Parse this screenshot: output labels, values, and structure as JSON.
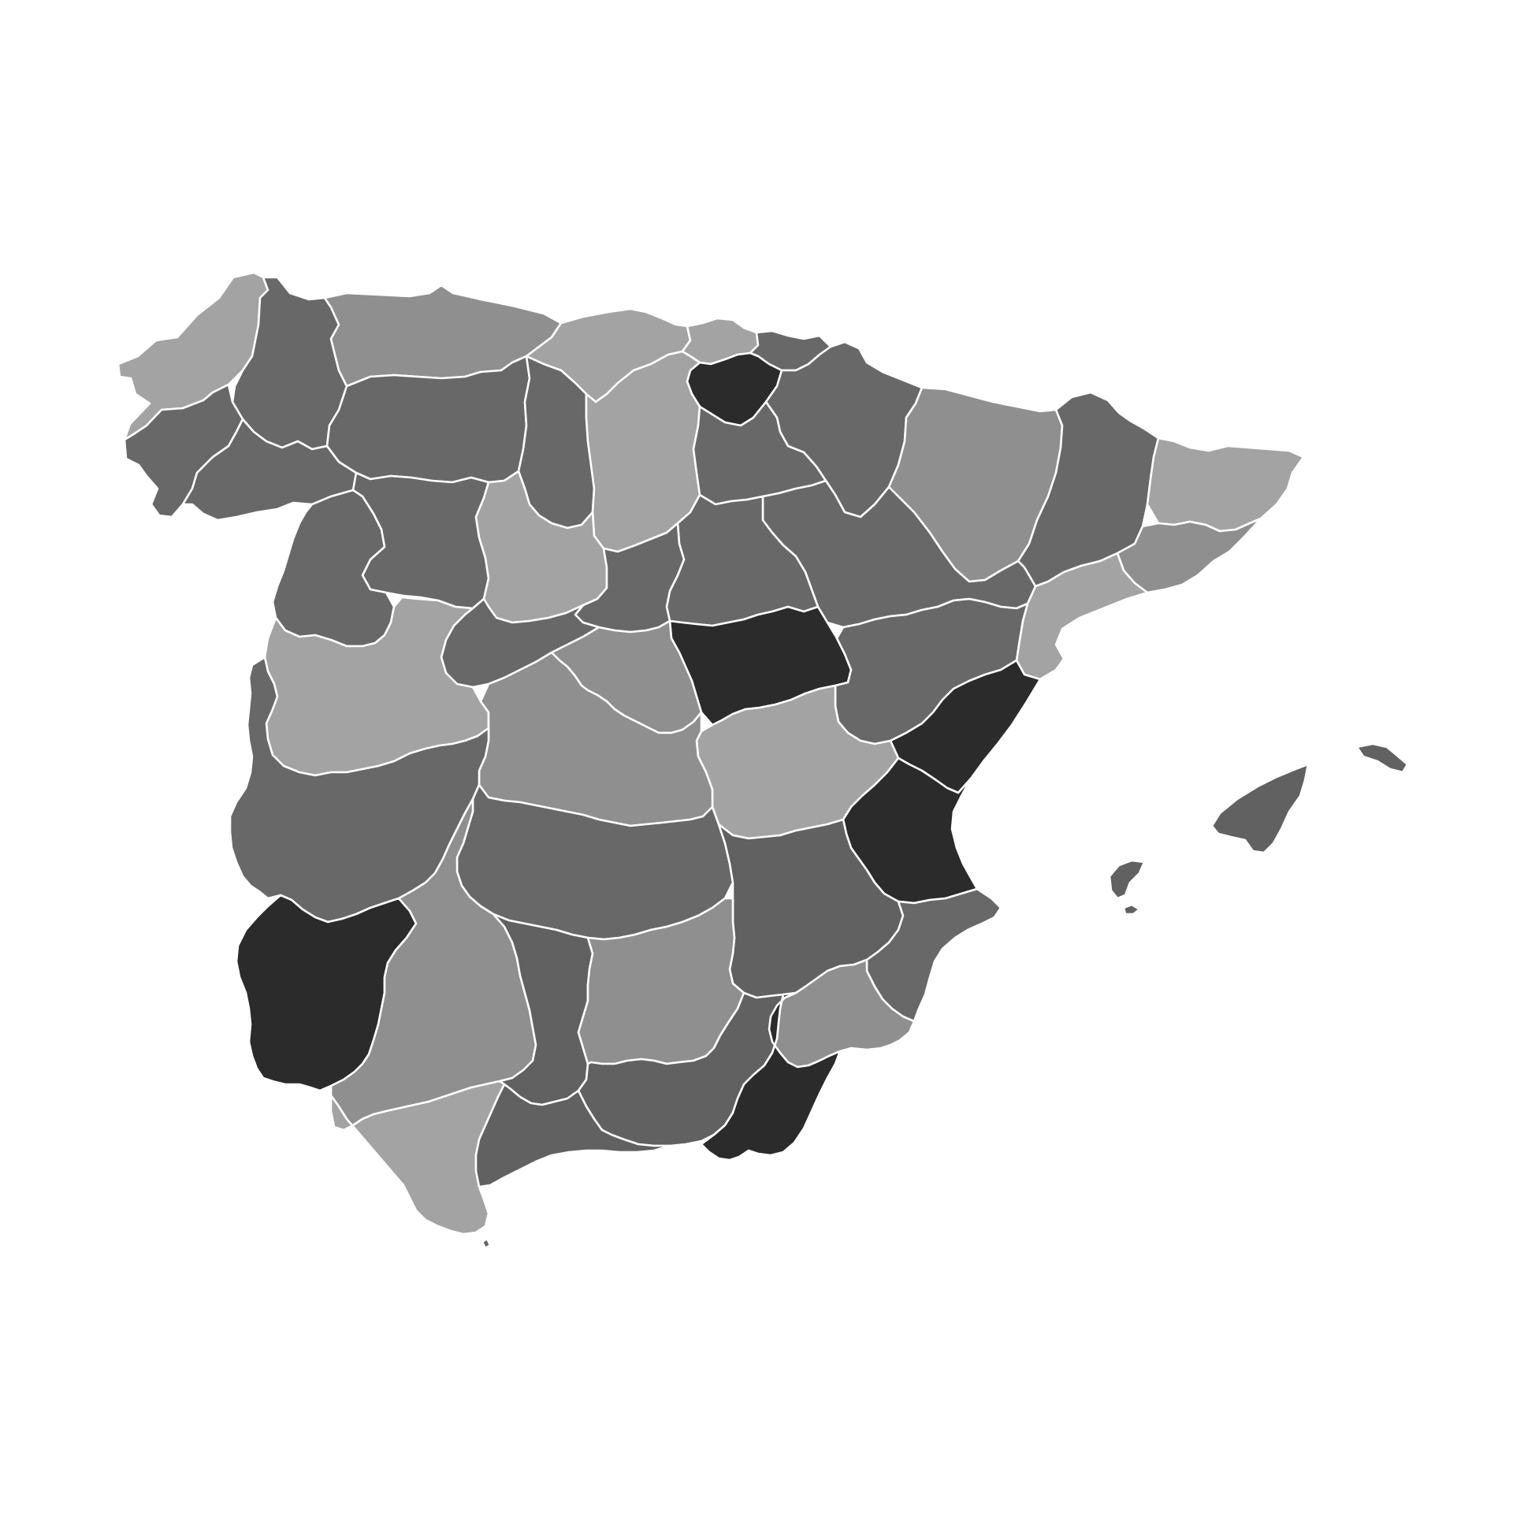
{
  "map": {
    "palette": {
      "background": "#ffffff",
      "border": "#ffffff",
      "darkest": "#2b2b2b",
      "dark": "#616161",
      "medium_dark": "#686868",
      "medium": "#8f8f8f",
      "light": "#a3a3a3"
    },
    "regions": [
      {
        "id": "a-coruna",
        "shade": "light"
      },
      {
        "id": "lugo",
        "shade": "medium_dark"
      },
      {
        "id": "pontevedra",
        "shade": "medium_dark"
      },
      {
        "id": "ourense",
        "shade": "medium_dark"
      },
      {
        "id": "asturias",
        "shade": "medium"
      },
      {
        "id": "cantabria",
        "shade": "light"
      },
      {
        "id": "bizkaia",
        "shade": "light"
      },
      {
        "id": "gipuzkoa",
        "shade": "medium_dark"
      },
      {
        "id": "alava",
        "shade": "darkest"
      },
      {
        "id": "navarra",
        "shade": "medium_dark"
      },
      {
        "id": "huesca",
        "shade": "medium"
      },
      {
        "id": "lleida",
        "shade": "medium_dark"
      },
      {
        "id": "girona",
        "shade": "light"
      },
      {
        "id": "barcelona",
        "shade": "medium"
      },
      {
        "id": "tarragona",
        "shade": "light"
      },
      {
        "id": "leon",
        "shade": "medium_dark"
      },
      {
        "id": "palencia",
        "shade": "medium_dark"
      },
      {
        "id": "burgos",
        "shade": "light"
      },
      {
        "id": "la-rioja",
        "shade": "medium_dark"
      },
      {
        "id": "zaragoza",
        "shade": "medium_dark"
      },
      {
        "id": "zamora",
        "shade": "medium_dark"
      },
      {
        "id": "valladolid",
        "shade": "light"
      },
      {
        "id": "soria",
        "shade": "medium_dark"
      },
      {
        "id": "segovia",
        "shade": "medium_dark"
      },
      {
        "id": "guadalajara",
        "shade": "darkest"
      },
      {
        "id": "teruel",
        "shade": "medium_dark"
      },
      {
        "id": "castellon",
        "shade": "darkest"
      },
      {
        "id": "salamanca",
        "shade": "medium_dark"
      },
      {
        "id": "avila",
        "shade": "medium_dark"
      },
      {
        "id": "madrid",
        "shade": "medium"
      },
      {
        "id": "cuenca",
        "shade": "light"
      },
      {
        "id": "valencia",
        "shade": "darkest"
      },
      {
        "id": "caceres",
        "shade": "light"
      },
      {
        "id": "toledo",
        "shade": "medium"
      },
      {
        "id": "badajoz",
        "shade": "medium_dark"
      },
      {
        "id": "ciudad-real",
        "shade": "medium_dark"
      },
      {
        "id": "albacete",
        "shade": "dark"
      },
      {
        "id": "alicante",
        "shade": "medium_dark"
      },
      {
        "id": "murcia",
        "shade": "medium"
      },
      {
        "id": "huelva",
        "shade": "darkest"
      },
      {
        "id": "sevilla",
        "shade": "medium"
      },
      {
        "id": "cordoba",
        "shade": "dark"
      },
      {
        "id": "jaen",
        "shade": "medium"
      },
      {
        "id": "granada",
        "shade": "dark"
      },
      {
        "id": "almeria",
        "shade": "darkest"
      },
      {
        "id": "cadiz",
        "shade": "light"
      },
      {
        "id": "malaga",
        "shade": "dark"
      },
      {
        "id": "mallorca",
        "shade": "dark"
      },
      {
        "id": "menorca",
        "shade": "dark"
      },
      {
        "id": "ibiza",
        "shade": "dark"
      },
      {
        "id": "formentera",
        "shade": "dark"
      },
      {
        "id": "ceuta",
        "shade": "dark"
      }
    ]
  }
}
